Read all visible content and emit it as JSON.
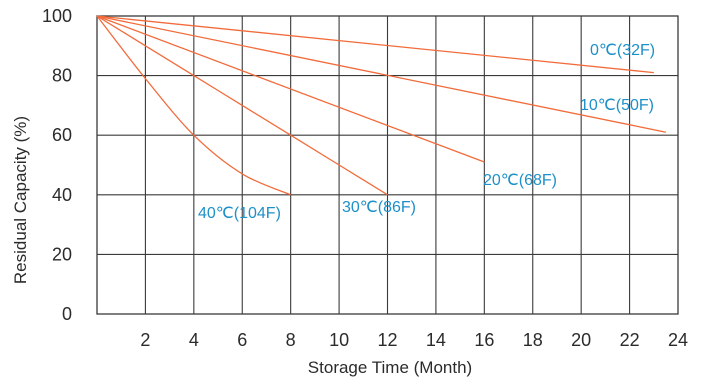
{
  "chart_data": {
    "type": "line",
    "xlabel": "Storage Time (Month)",
    "ylabel": "Residual Capacity  (%)",
    "xlim": [
      0,
      24
    ],
    "ylim": [
      0,
      100
    ],
    "xticks": [
      2,
      4,
      6,
      8,
      10,
      12,
      14,
      16,
      18,
      20,
      22,
      24
    ],
    "yticks": [
      0,
      20,
      40,
      60,
      80,
      100
    ],
    "grid": true,
    "legend": "none",
    "colors": {
      "line": "#f26b3a",
      "label": "#1e90c8",
      "grid": "#3a3a3a",
      "text": "#2b2b2b"
    },
    "series": [
      {
        "name": "0℃(32F)",
        "x": [
          0,
          23
        ],
        "y": [
          100,
          81
        ]
      },
      {
        "name": "10℃(50F)",
        "x": [
          0,
          23.5
        ],
        "y": [
          100,
          61
        ]
      },
      {
        "name": "20℃(68F)",
        "x": [
          0,
          16
        ],
        "y": [
          100,
          51
        ]
      },
      {
        "name": "30℃(86F)",
        "x": [
          0,
          2,
          4,
          6,
          8,
          10,
          12
        ],
        "y": [
          100,
          90,
          80,
          70,
          60,
          50,
          40
        ]
      },
      {
        "name": "40℃(104F)",
        "x": [
          0,
          2,
          4,
          6,
          8
        ],
        "y": [
          100,
          79,
          60,
          47,
          40
        ]
      }
    ]
  }
}
